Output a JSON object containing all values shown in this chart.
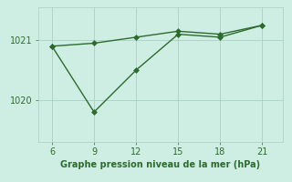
{
  "x": [
    6,
    9,
    12,
    15,
    18,
    21
  ],
  "line1_y": [
    1020.9,
    1020.95,
    1021.05,
    1021.15,
    1021.1,
    1021.25
  ],
  "line2_y": [
    1020.9,
    1019.8,
    1020.5,
    1021.1,
    1021.05,
    1021.25
  ],
  "line_color": "#2d6b2d",
  "bg_color": "#ceeee4",
  "grid_color": "#aacfc4",
  "xlabel": "Graphe pression niveau de la mer (hPa)",
  "xlabel_color": "#2d6b2d",
  "tick_color": "#2d6b2d",
  "ylim": [
    1019.3,
    1021.55
  ],
  "ytick_vals": [
    1020,
    1021
  ],
  "xticks": [
    6,
    9,
    12,
    15,
    18,
    21
  ],
  "markersize": 3,
  "linewidth": 1.0,
  "tick_labelsize": 7,
  "xlabel_fontsize": 7
}
